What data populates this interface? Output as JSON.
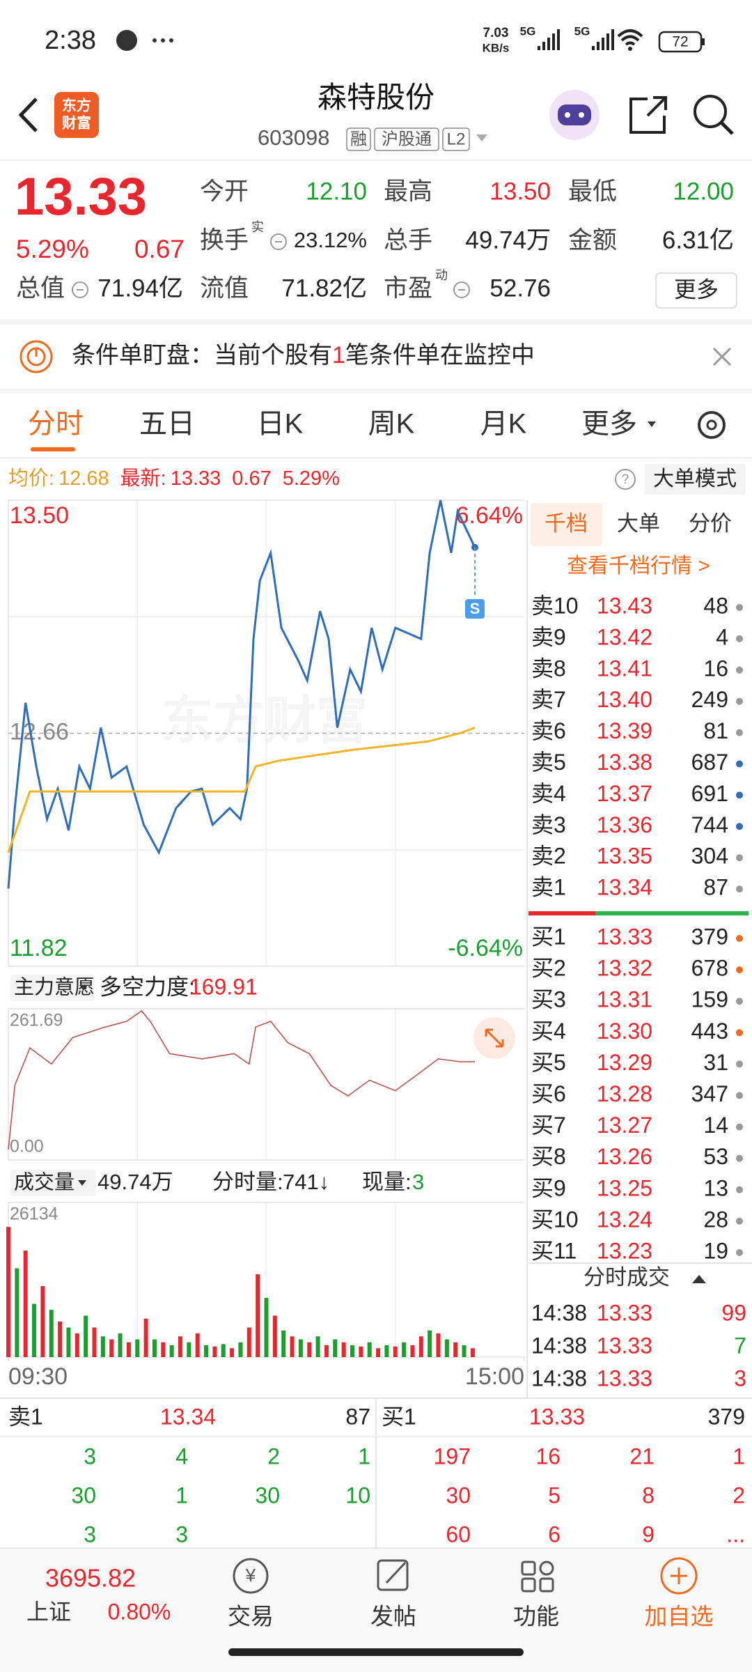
{
  "status_bar": {
    "time": "2:38",
    "speed": "7.03",
    "speed_unit": "KB/s",
    "network": [
      "5G",
      "5G"
    ],
    "battery": "72"
  },
  "header": {
    "logo": [
      "东方",
      "财富"
    ],
    "title": "森特股份",
    "code": "603098",
    "tags": [
      "融",
      "沪股通",
      "L2"
    ]
  },
  "quote": {
    "price": "13.33",
    "change_pct": "5.29%",
    "change": "0.67",
    "more": "更多",
    "fields": [
      {
        "label": "今开",
        "value": "12.10",
        "color": "#1a9e2e"
      },
      {
        "label": "最高",
        "value": "13.50",
        "color": "#e8262d"
      },
      {
        "label": "最低",
        "value": "12.00",
        "color": "#1a9e2e"
      },
      {
        "label": "换手",
        "sup": "实",
        "value": "23.12%",
        "color": "#222222"
      },
      {
        "label": "总手",
        "value": "49.74万",
        "color": "#222222"
      },
      {
        "label": "金额",
        "value": "6.31亿",
        "color": "#222222"
      },
      {
        "label": "总值",
        "value": "71.94亿",
        "color": "#222222"
      },
      {
        "label": "流值",
        "value": "71.82亿",
        "color": "#222222"
      },
      {
        "label": "市盈",
        "sup": "动",
        "value": "52.76",
        "color": "#222222"
      }
    ]
  },
  "notice": {
    "before": "条件单盯盘：当前个股有",
    "highlight": "1",
    "after": "笔条件单在监控中"
  },
  "tabs": [
    "分时",
    "五日",
    "日K",
    "周K",
    "月K",
    "更多"
  ],
  "info_line": {
    "avg_label": "均价:",
    "avg": "12.68",
    "last_label": "最新:",
    "last": "13.33",
    "change": "0.67",
    "change_pct": "5.29%",
    "mode_button": "大单模式"
  },
  "chart_data": [
    {
      "type": "line",
      "watermark": "东方财富",
      "xlim": [
        0,
        240
      ],
      "ylim": [
        11.82,
        13.5
      ],
      "yticks": [
        {
          "value": 13.5,
          "label": "13.50"
        },
        12.66,
        11.82
      ],
      "ytick_colors": [
        "#e8262d",
        "#888888",
        "#1a9e2e"
      ],
      "y2lim": [
        -6.64,
        6.64
      ],
      "y2ticks": [
        {
          "value": 6.64,
          "label": "6.64%"
        },
        {
          "value": -6.64,
          "label": "-6.64%"
        }
      ],
      "y2tick_colors": [
        "#e8262d",
        "#1a9e2e"
      ],
      "series": [
        {
          "color": "#2f6db5",
          "x": [
            0,
            3,
            8,
            13,
            18,
            23,
            28,
            33,
            38,
            43,
            48,
            55,
            63,
            70,
            78,
            85,
            90,
            95,
            103,
            108,
            111,
            114,
            117,
            122,
            127,
            135,
            139,
            145,
            149,
            153,
            159,
            164,
            169,
            174,
            180,
            186,
            192,
            196,
            201,
            206,
            209,
            217
          ],
          "values": [
            12.1,
            12.39,
            12.77,
            12.54,
            12.35,
            12.46,
            12.31,
            12.54,
            12.46,
            12.68,
            12.5,
            12.54,
            12.33,
            12.23,
            12.39,
            12.45,
            12.46,
            12.33,
            12.39,
            12.35,
            12.46,
            13.0,
            13.21,
            13.31,
            13.04,
            12.92,
            12.85,
            13.1,
            13.0,
            12.68,
            12.89,
            12.81,
            13.04,
            12.89,
            13.04,
            13.02,
            13.0,
            13.31,
            13.5,
            13.31,
            13.46,
            13.33
          ]
        },
        {
          "color": "#f0b429",
          "x": [
            0,
            10,
            110,
            115,
            125,
            160,
            195,
            210,
            217
          ],
          "values": [
            12.23,
            12.45,
            12.45,
            12.54,
            12.56,
            12.6,
            12.63,
            12.66,
            12.68
          ]
        }
      ]
    },
    {
      "type": "line",
      "indicator": "主力意愿",
      "label": "多空力度:",
      "value_text": "169.91",
      "xlim": [
        0,
        240
      ],
      "ylim": [
        0,
        261.69
      ],
      "yticks": [
        261.69,
        {
          "value": 0,
          "label": "0.00"
        }
      ],
      "ytick_colors": [
        "#888888",
        "#888888"
      ],
      "series": [
        {
          "color": "#b85450",
          "x": [
            0,
            3,
            10,
            20,
            30,
            45,
            55,
            62,
            66,
            75,
            90,
            105,
            112,
            115,
            122,
            130,
            140,
            150,
            158,
            168,
            180,
            190,
            200,
            210,
            217
          ],
          "values": [
            18,
            129,
            194,
            166,
            212,
            230,
            240,
            258,
            240,
            184,
            175,
            184,
            166,
            230,
            240,
            203,
            184,
            129,
            111,
            138,
            120,
            147,
            175,
            170,
            169.91
          ]
        }
      ]
    },
    {
      "type": "bar",
      "indicator": "成交量",
      "total": "49.74万",
      "minute_label": "分时量:",
      "minute_value": "741↓",
      "current_label": "现量:",
      "current_value": "3",
      "xlim": [
        0,
        240
      ],
      "ylim": [
        0,
        26134
      ],
      "yticks": [
        26134
      ],
      "ytick_colors": [
        "#888888"
      ],
      "xticks": [
        {
          "value": 0,
          "label": "09:30"
        },
        {
          "value": 240,
          "label": "15:00"
        }
      ],
      "x": [
        0,
        4,
        8,
        12,
        16,
        20,
        24,
        28,
        32,
        36,
        40,
        44,
        48,
        52,
        56,
        60,
        64,
        68,
        72,
        76,
        80,
        84,
        88,
        92,
        96,
        100,
        104,
        108,
        112,
        116,
        120,
        124,
        128,
        132,
        136,
        140,
        144,
        148,
        152,
        156,
        160,
        164,
        168,
        172,
        176,
        180,
        184,
        188,
        192,
        196,
        200,
        204,
        208,
        212,
        216
      ],
      "values": [
        22000,
        15000,
        18000,
        9000,
        12000,
        8000,
        6000,
        5000,
        4000,
        7000,
        5000,
        3500,
        3000,
        4000,
        2500,
        3000,
        6500,
        3000,
        2500,
        2000,
        3500,
        2500,
        4000,
        2000,
        1800,
        2200,
        1500,
        2500,
        5000,
        14000,
        10000,
        7000,
        4500,
        3500,
        3000,
        2500,
        3500,
        2000,
        3000,
        2500,
        2000,
        1800,
        2500,
        1500,
        2000,
        1800,
        2500,
        2000,
        3500,
        4500,
        4000,
        3000,
        2500,
        2000,
        1500
      ],
      "colors": [
        "#e8262d",
        "#1a9e2e",
        "#e8262d",
        "#1a9e2e",
        "#e8262d",
        "#1a9e2e",
        "#e8262d",
        "#1a9e2e",
        "#e8262d",
        "#1a9e2e",
        "#e8262d",
        "#1a9e2e",
        "#e8262d",
        "#1a9e2e",
        "#e8262d",
        "#1a9e2e",
        "#e8262d",
        "#1a9e2e",
        "#e8262d",
        "#1a9e2e",
        "#e8262d",
        "#1a9e2e",
        "#e8262d",
        "#1a9e2e",
        "#e8262d",
        "#1a9e2e",
        "#e8262d",
        "#1a9e2e",
        "#e8262d",
        "#e8262d",
        "#1a9e2e",
        "#e8262d",
        "#1a9e2e",
        "#e8262d",
        "#1a9e2e",
        "#e8262d",
        "#1a9e2e",
        "#e8262d",
        "#1a9e2e",
        "#e8262d",
        "#1a9e2e",
        "#e8262d",
        "#1a9e2e",
        "#e8262d",
        "#1a9e2e",
        "#e8262d",
        "#1a9e2e",
        "#e8262d",
        "#e8262d",
        "#1a9e2e",
        "#e8262d",
        "#1a9e2e",
        "#e8262d",
        "#1a9e2e",
        "#e8262d"
      ]
    }
  ],
  "depth": {
    "tabs": [
      "千档",
      "大单",
      "分价"
    ],
    "link": "查看千档行情 >",
    "asks": [
      {
        "label": "卖10",
        "price": "13.43",
        "volume": "48",
        "dot": "#999999"
      },
      {
        "label": "卖9",
        "price": "13.42",
        "volume": "4",
        "dot": "#999999"
      },
      {
        "label": "卖8",
        "price": "13.41",
        "volume": "16",
        "dot": "#999999"
      },
      {
        "label": "卖7",
        "price": "13.40",
        "volume": "249",
        "dot": "#999999"
      },
      {
        "label": "卖6",
        "price": "13.39",
        "volume": "81",
        "dot": "#999999"
      },
      {
        "label": "卖5",
        "price": "13.38",
        "volume": "687",
        "dot": "#2f6db5"
      },
      {
        "label": "卖4",
        "price": "13.37",
        "volume": "691",
        "dot": "#2f6db5"
      },
      {
        "label": "卖3",
        "price": "13.36",
        "volume": "744",
        "dot": "#2f6db5"
      },
      {
        "label": "卖2",
        "price": "13.35",
        "volume": "304",
        "dot": "#999999"
      },
      {
        "label": "卖1",
        "price": "13.34",
        "volume": "87",
        "dot": "#999999"
      }
    ],
    "bids": [
      {
        "label": "买1",
        "price": "13.33",
        "volume": "379",
        "dot": "#ef6a1f"
      },
      {
        "label": "买2",
        "price": "13.32",
        "volume": "678",
        "dot": "#ef6a1f"
      },
      {
        "label": "买3",
        "price": "13.31",
        "volume": "159",
        "dot": "#999999"
      },
      {
        "label": "买4",
        "price": "13.30",
        "volume": "443",
        "dot": "#ef6a1f"
      },
      {
        "label": "买5",
        "price": "13.29",
        "volume": "31",
        "dot": "#999999"
      },
      {
        "label": "买6",
        "price": "13.28",
        "volume": "347",
        "dot": "#999999"
      },
      {
        "label": "买7",
        "price": "13.27",
        "volume": "14",
        "dot": "#999999"
      },
      {
        "label": "买8",
        "price": "13.26",
        "volume": "53",
        "dot": "#999999"
      },
      {
        "label": "买9",
        "price": "13.25",
        "volume": "13",
        "dot": "#999999"
      },
      {
        "label": "买10",
        "price": "13.24",
        "volume": "28",
        "dot": "#999999"
      },
      {
        "label": "买11",
        "price": "13.23",
        "volume": "19",
        "dot": "#999999"
      }
    ]
  },
  "trades": {
    "title": "分时成交",
    "rows": [
      {
        "time": "14:38",
        "price": "13.33",
        "volume": "99",
        "color": "#e8262d"
      },
      {
        "time": "14:38",
        "price": "13.33",
        "volume": "7",
        "color": "#1a9e2e"
      },
      {
        "time": "14:38",
        "price": "13.33",
        "volume": "3",
        "color": "#e8262d"
      }
    ]
  },
  "book": {
    "ask_label": "卖1",
    "ask_price": "13.34",
    "ask_volume": "87",
    "bid_label": "买1",
    "bid_price": "13.33",
    "bid_volume": "379",
    "ask_queue": [
      [
        "3",
        "4",
        "2",
        "1"
      ],
      [
        "30",
        "1",
        "30",
        "10"
      ],
      [
        "3",
        "3"
      ]
    ],
    "bid_queue": [
      [
        "197",
        "16",
        "21",
        "1"
      ],
      [
        "30",
        "5",
        "8",
        "2"
      ],
      [
        "60",
        "6",
        "9",
        "..."
      ]
    ]
  },
  "nav": {
    "index_value": "3695.82",
    "index_name": "上证",
    "index_change": "0.80%",
    "items": [
      "交易",
      "发帖",
      "功能",
      "加自选"
    ]
  }
}
